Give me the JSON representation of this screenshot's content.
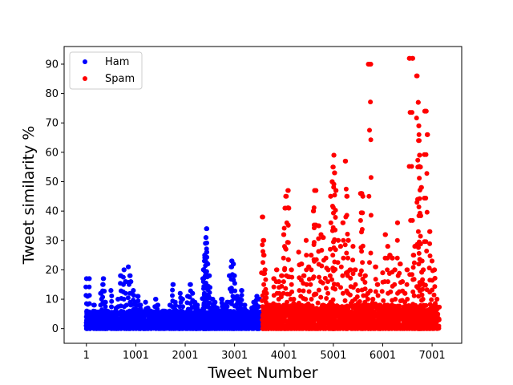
{
  "chart_data": {
    "type": "scatter",
    "xlabel": "Tweet Number",
    "ylabel": "Tweet similarity %",
    "xlim": [
      -450,
      7600
    ],
    "ylim": [
      -5,
      96
    ],
    "xticks": [
      1,
      1001,
      2001,
      3001,
      4001,
      5001,
      6001,
      7001
    ],
    "xtick_labels": [
      "1",
      "1001",
      "2001",
      "3001",
      "4001",
      "5001",
      "6001",
      "7001"
    ],
    "yticks": [
      0,
      10,
      20,
      30,
      40,
      50,
      60,
      70,
      80,
      90
    ],
    "ytick_labels": [
      "0",
      "10",
      "20",
      "30",
      "40",
      "50",
      "60",
      "70",
      "80",
      "90"
    ],
    "grid": false,
    "legend_position": "top-left",
    "series": [
      {
        "name": "Ham",
        "color": "#0000ff",
        "points": [
          [
            1,
            17
          ],
          [
            60,
            17
          ],
          [
            20,
            11
          ],
          [
            10,
            6
          ],
          [
            90,
            4
          ],
          [
            150,
            8
          ],
          [
            200,
            3
          ],
          [
            250,
            5
          ],
          [
            300,
            12
          ],
          [
            330,
            15
          ],
          [
            350,
            17
          ],
          [
            380,
            9
          ],
          [
            420,
            6
          ],
          [
            500,
            13
          ],
          [
            560,
            4
          ],
          [
            600,
            7
          ],
          [
            640,
            10
          ],
          [
            700,
            18
          ],
          [
            760,
            20
          ],
          [
            800,
            16
          ],
          [
            850,
            21
          ],
          [
            880,
            18
          ],
          [
            900,
            16
          ],
          [
            950,
            13
          ],
          [
            1000,
            9
          ],
          [
            1050,
            11
          ],
          [
            1100,
            8
          ],
          [
            1150,
            5
          ],
          [
            1200,
            9
          ],
          [
            1250,
            7
          ],
          [
            1300,
            6
          ],
          [
            1400,
            10
          ],
          [
            1450,
            8
          ],
          [
            1500,
            5
          ],
          [
            1550,
            6
          ],
          [
            1600,
            4
          ],
          [
            1700,
            8
          ],
          [
            1750,
            15
          ],
          [
            1800,
            9
          ],
          [
            1900,
            12
          ],
          [
            1950,
            10
          ],
          [
            2050,
            11
          ],
          [
            2100,
            15
          ],
          [
            2150,
            12
          ],
          [
            2200,
            9
          ],
          [
            2250,
            8
          ],
          [
            2300,
            6
          ],
          [
            2360,
            17
          ],
          [
            2380,
            20
          ],
          [
            2390,
            23
          ],
          [
            2400,
            25
          ],
          [
            2410,
            29
          ],
          [
            2420,
            31
          ],
          [
            2430,
            34
          ],
          [
            2440,
            26
          ],
          [
            2460,
            22
          ],
          [
            2480,
            18
          ],
          [
            2500,
            14
          ],
          [
            2550,
            10
          ],
          [
            2600,
            9
          ],
          [
            2650,
            7
          ],
          [
            2700,
            6
          ],
          [
            2750,
            10
          ],
          [
            2800,
            8
          ],
          [
            2850,
            9
          ],
          [
            2900,
            18
          ],
          [
            2930,
            21
          ],
          [
            2950,
            23
          ],
          [
            2980,
            22
          ],
          [
            3000,
            18
          ],
          [
            3050,
            11
          ],
          [
            3100,
            10
          ],
          [
            3150,
            13
          ],
          [
            3200,
            8
          ],
          [
            3250,
            6
          ],
          [
            3300,
            4
          ],
          [
            3350,
            7
          ],
          [
            3400,
            9
          ],
          [
            3450,
            11
          ],
          [
            3500,
            10
          ]
        ],
        "dense_band": {
          "x_start": 1,
          "x_end": 3550,
          "y_min": 0,
          "y_max": 6
        }
      },
      {
        "name": "Spam",
        "color": "#ff0000",
        "points": [
          [
            3560,
            38
          ],
          [
            3580,
            30
          ],
          [
            3600,
            25
          ],
          [
            3620,
            20
          ],
          [
            3650,
            12
          ],
          [
            3700,
            8
          ],
          [
            3750,
            6
          ],
          [
            3800,
            17
          ],
          [
            3850,
            20
          ],
          [
            3900,
            16
          ],
          [
            3950,
            18
          ],
          [
            4000,
            32
          ],
          [
            4020,
            41
          ],
          [
            4050,
            45
          ],
          [
            4080,
            47
          ],
          [
            4100,
            41
          ],
          [
            4150,
            20
          ],
          [
            4200,
            10
          ],
          [
            4250,
            8
          ],
          [
            4300,
            26
          ],
          [
            4350,
            22
          ],
          [
            4400,
            18
          ],
          [
            4450,
            30
          ],
          [
            4500,
            21
          ],
          [
            4550,
            25
          ],
          [
            4600,
            40
          ],
          [
            4620,
            47
          ],
          [
            4650,
            47
          ],
          [
            4700,
            35
          ],
          [
            4750,
            32
          ],
          [
            4800,
            31
          ],
          [
            4850,
            24
          ],
          [
            4900,
            20
          ],
          [
            4950,
            45
          ],
          [
            4980,
            50
          ],
          [
            5000,
            55
          ],
          [
            5010,
            59
          ],
          [
            5030,
            53
          ],
          [
            5050,
            47
          ],
          [
            5100,
            30
          ],
          [
            5150,
            28
          ],
          [
            5200,
            36
          ],
          [
            5250,
            57
          ],
          [
            5280,
            45
          ],
          [
            5300,
            30
          ],
          [
            5350,
            20
          ],
          [
            5400,
            28
          ],
          [
            5450,
            20
          ],
          [
            5500,
            13
          ],
          [
            5550,
            46
          ],
          [
            5580,
            46
          ],
          [
            5600,
            45
          ],
          [
            5650,
            18
          ],
          [
            5700,
            12
          ],
          [
            5720,
            90
          ],
          [
            5760,
            90
          ],
          [
            5800,
            10
          ],
          [
            5850,
            21
          ],
          [
            5900,
            15
          ],
          [
            5950,
            8
          ],
          [
            6000,
            19
          ],
          [
            6050,
            32
          ],
          [
            6100,
            28
          ],
          [
            6150,
            25
          ],
          [
            6200,
            24
          ],
          [
            6250,
            20
          ],
          [
            6300,
            36
          ],
          [
            6350,
            22
          ],
          [
            6400,
            16
          ],
          [
            6450,
            12
          ],
          [
            6500,
            20
          ],
          [
            6550,
            92
          ],
          [
            6600,
            92
          ],
          [
            6620,
            25
          ],
          [
            6650,
            28
          ],
          [
            6700,
            86
          ],
          [
            6720,
            77
          ],
          [
            6730,
            69
          ],
          [
            6740,
            64
          ],
          [
            6750,
            59
          ],
          [
            6760,
            55
          ],
          [
            6780,
            48
          ],
          [
            6800,
            23
          ],
          [
            6820,
            20
          ],
          [
            6850,
            74
          ],
          [
            6880,
            74
          ],
          [
            6900,
            66
          ],
          [
            6950,
            33
          ],
          [
            7000,
            23
          ],
          [
            7050,
            20
          ],
          [
            7100,
            10
          ]
        ],
        "dense_band": {
          "x_start": 3560,
          "x_end": 7150,
          "y_min": 0,
          "y_max": 8
        }
      }
    ]
  }
}
